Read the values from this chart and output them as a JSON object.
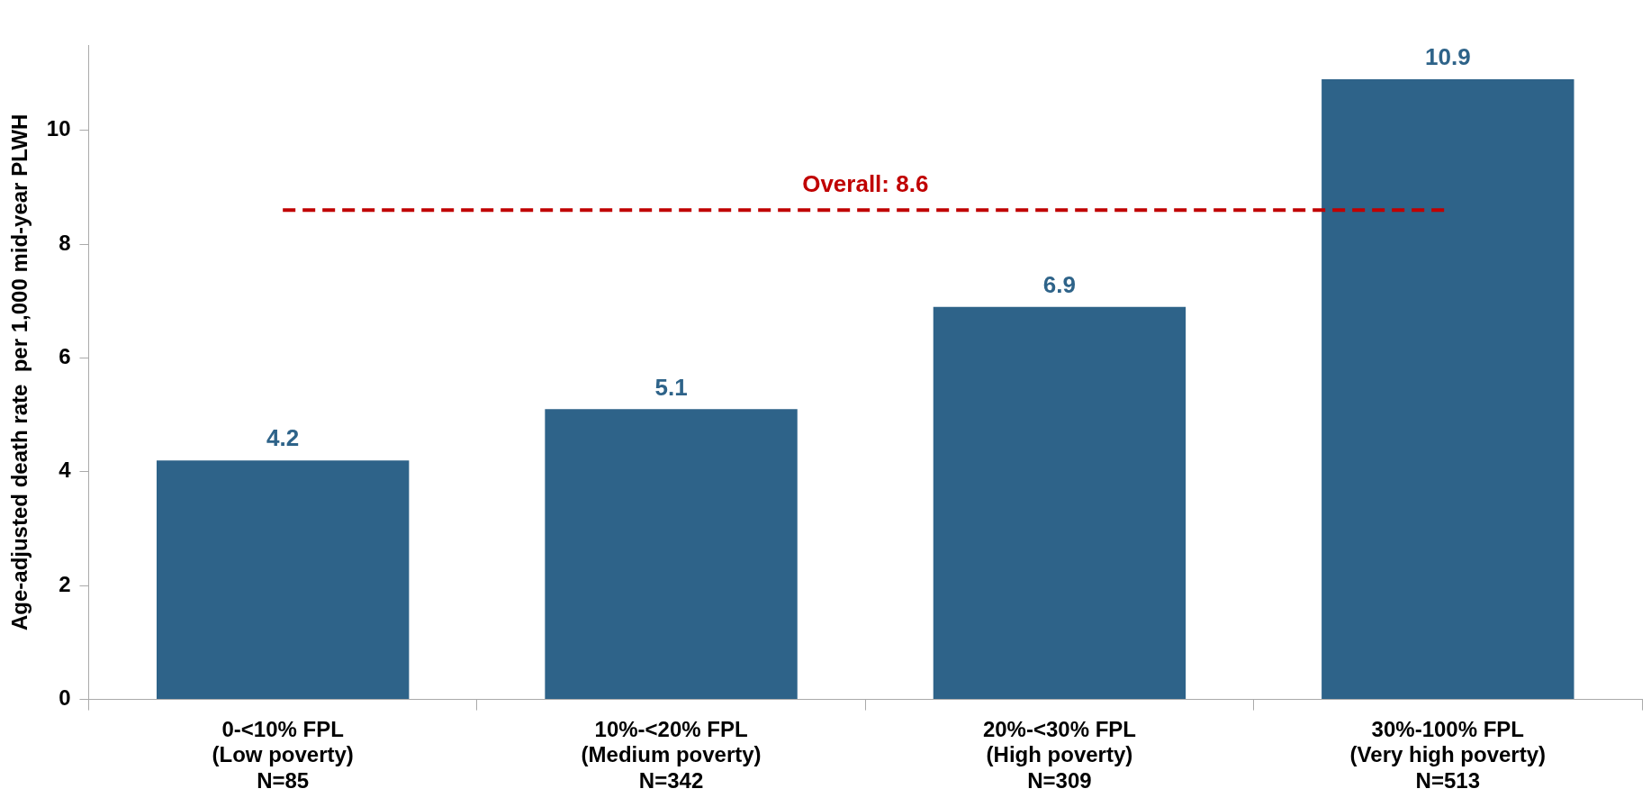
{
  "chart_data": {
    "type": "bar",
    "ylabel": "Age-adjusted death rate  per 1,000 mid-year PLWH",
    "categories": [
      "0-<10% FPL\n(Low poverty)\nN=85",
      "10%-<20% FPL\n(Medium poverty)\nN=342",
      "20%-<30% FPL\n(High poverty)\nN=309",
      "30%-100% FPL\n(Very high poverty)\nN=513"
    ],
    "values": [
      4.2,
      5.1,
      6.9,
      10.9
    ],
    "color": "#2e6389",
    "data_labels": true,
    "ylim": [
      0,
      11.5
    ],
    "yticks": [
      0,
      2,
      4,
      6,
      8,
      10
    ],
    "grid": false,
    "legend": false,
    "ref_lines": [
      {
        "axis": "y",
        "value": 8.6,
        "label": "Overall: 8.6",
        "color": "#c00000",
        "line_style": "dashed"
      }
    ]
  }
}
